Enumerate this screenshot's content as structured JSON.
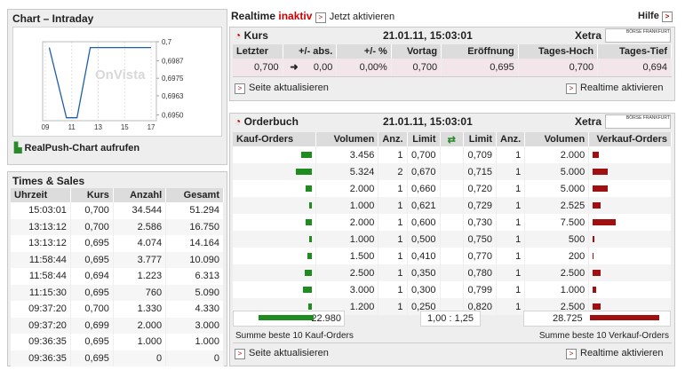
{
  "intraday": {
    "title": "Chart – Intraday",
    "watermark": "OnVista",
    "link": "RealPush-Chart aufrufen",
    "chart": {
      "type": "line",
      "x": [
        9.3,
        10.6,
        11.4,
        12.4,
        17
      ],
      "values": [
        0.6996,
        0.6948,
        0.6948,
        0.6996,
        0.6996
      ],
      "color": "#1f5fa8",
      "xlim": [
        8.8,
        17.4
      ],
      "ylim": [
        0.6946,
        0.7
      ],
      "xticks": [
        {
          "value": 9,
          "label": "09"
        },
        11,
        13,
        15,
        17
      ],
      "yticks": [
        {
          "value": 0.7,
          "label": "0,7"
        },
        {
          "value": 0.6987,
          "label": "0,6987"
        },
        {
          "value": 0.6975,
          "label": "0,6975"
        },
        {
          "value": 0.6963,
          "label": "0,6963"
        },
        {
          "value": 0.695,
          "label": "0,6950"
        }
      ],
      "grid": true
    }
  },
  "times_sales": {
    "title": "Times & Sales",
    "columns": [
      "Uhrzeit",
      "Kurs",
      "Anzahl",
      "Gesamt"
    ],
    "rows": [
      [
        "15:03:01",
        "0,700",
        "34.544",
        "51.294"
      ],
      [
        "13:13:12",
        "0,700",
        "2.586",
        "16.750"
      ],
      [
        "13:13:12",
        "0,695",
        "4.074",
        "14.164"
      ],
      [
        "11:58:44",
        "0,695",
        "3.777",
        "10.090"
      ],
      [
        "11:58:44",
        "0,694",
        "1.223",
        "6.313"
      ],
      [
        "11:15:30",
        "0,695",
        "760",
        "5.090"
      ],
      [
        "09:37:20",
        "0,700",
        "1.330",
        "4.330"
      ],
      [
        "09:37:20",
        "0,699",
        "2.000",
        "3.000"
      ],
      [
        "09:36:35",
        "0,695",
        "1.000",
        "1.000"
      ],
      [
        "09:36:35",
        "0,695",
        "0",
        "0"
      ]
    ]
  },
  "realtime": {
    "label": "Realtime",
    "status": "inaktiv",
    "activate": "Jetzt aktivieren",
    "help": "Hilfe"
  },
  "kurs": {
    "title": "Kurs",
    "timestamp": "21.01.11, 15:03:01",
    "exchange": "Xetra",
    "logo": "BÖRSE FRANKFURT",
    "columns": [
      "Letzter",
      "+/- abs.",
      "+/- %",
      "Vortag",
      "Eröffnung",
      "Tages-Hoch",
      "Tages-Tief"
    ],
    "row": [
      "0,700",
      "0,00",
      "0,00%",
      "0,700",
      "0,695",
      "0,700",
      "0,694"
    ],
    "refresh": "Seite aktualisieren",
    "realtime": "Realtime aktivieren"
  },
  "orderbuch": {
    "title": "Orderbuch",
    "timestamp": "21.01.11, 15:03:01",
    "exchange": "Xetra",
    "logo": "BÖRSE FRANKFURT",
    "columns": [
      "Kauf-Orders",
      "Volumen",
      "Anz.",
      "Limit",
      "Limit",
      "Anz.",
      "Volumen",
      "Verkauf-Orders"
    ],
    "rows": [
      [
        {
          "value": 3456,
          "label": "3.456"
        },
        "1",
        "0,700",
        "0,709",
        "1",
        {
          "value": 2000,
          "label": "2.000"
        }
      ],
      [
        {
          "value": 5324,
          "label": "5.324"
        },
        "2",
        "0,670",
        "0,715",
        "1",
        {
          "value": 5000,
          "label": "5.000"
        }
      ],
      [
        {
          "value": 2000,
          "label": "2.000"
        },
        "1",
        "0,660",
        "0,720",
        "1",
        {
          "value": 5000,
          "label": "5.000"
        }
      ],
      [
        {
          "value": 1000,
          "label": "1.000"
        },
        "1",
        "0,621",
        "0,729",
        "1",
        {
          "value": 2525,
          "label": "2.525"
        }
      ],
      [
        {
          "value": 2000,
          "label": "2.000"
        },
        "1",
        "0,600",
        "0,730",
        "1",
        {
          "value": 7500,
          "label": "7.500"
        }
      ],
      [
        {
          "value": 1000,
          "label": "1.000"
        },
        "1",
        "0,500",
        "0,750",
        "1",
        500
      ],
      [
        {
          "value": 1500,
          "label": "1.500"
        },
        "1",
        "0,410",
        "0,770",
        "1",
        200
      ],
      [
        {
          "value": 2500,
          "label": "2.500"
        },
        "1",
        "0,350",
        "0,780",
        "1",
        {
          "value": 2500,
          "label": "2.500"
        }
      ],
      [
        {
          "value": 3000,
          "label": "3.000"
        },
        "1",
        "0,300",
        "0,799",
        "1",
        {
          "value": 1000,
          "label": "1.000"
        }
      ],
      [
        {
          "value": 1200,
          "label": "1.200"
        },
        "1",
        "0,250",
        "0,820",
        "1",
        {
          "value": 2500,
          "label": "2.500"
        }
      ]
    ],
    "buy_total": {
      "value": 22980,
      "label": "22.980"
    },
    "ratio": "1,00 : 1,25",
    "sell_total": {
      "value": 28725,
      "label": "28.725"
    },
    "buy_caption": "Summe beste 10 Kauf-Orders",
    "sell_caption": "Summe beste 10 Verkauf-Orders",
    "refresh": "Seite aktualisieren",
    "realtime": "Realtime aktivieren"
  }
}
